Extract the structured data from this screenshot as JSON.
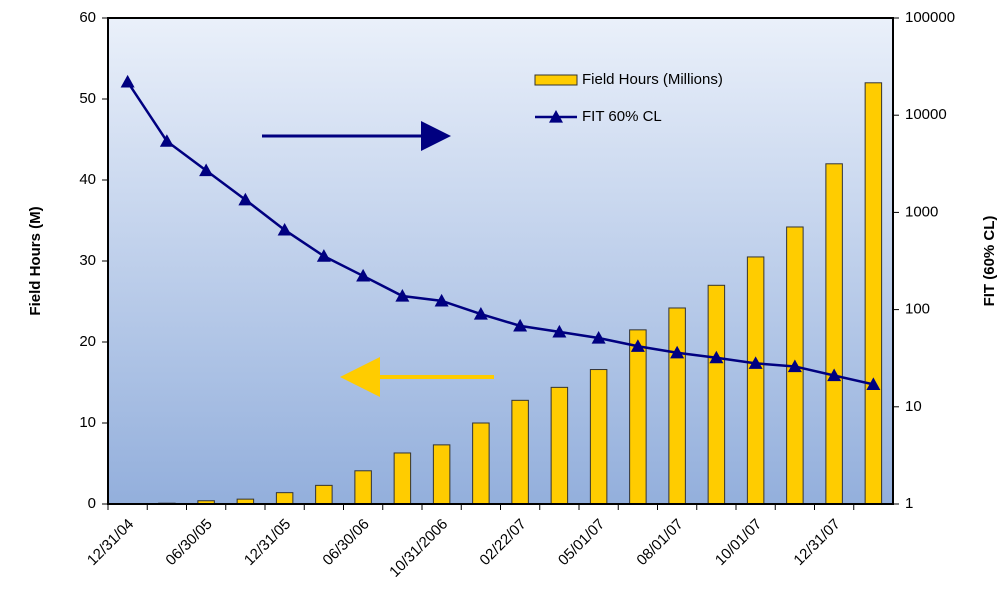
{
  "chart_data": {
    "type": "bar-line",
    "categories": [
      "12/31/04",
      null,
      "06/30/05",
      null,
      "12/31/05",
      null,
      "06/30/06",
      null,
      "10/31/2006",
      null,
      "02/22/07",
      null,
      "05/01/07",
      null,
      "08/01/07",
      null,
      "10/01/07",
      null,
      "12/31/07",
      null
    ],
    "series": [
      {
        "name": "Field Hours (Millions)",
        "type": "bar",
        "color": "#ffcc00",
        "axis": "y",
        "values": [
          0.05,
          0.1,
          0.4,
          0.6,
          1.4,
          2.3,
          4.1,
          6.3,
          7.3,
          10.0,
          12.8,
          14.4,
          16.6,
          21.5,
          24.2,
          27.0,
          30.5,
          34.2,
          42.0,
          52.0
        ]
      },
      {
        "name": "FIT 60% CL",
        "type": "line",
        "color": "#000080",
        "axis": "y2",
        "values": [
          22000,
          5400,
          2700,
          1350,
          660,
          355,
          222,
          138,
          123,
          90,
          68,
          59,
          51,
          42,
          36,
          32,
          28,
          26,
          21,
          17
        ]
      }
    ],
    "ylabel": "Field Hours (M)",
    "y2label": "FIT (60% CL)",
    "ylim": [
      0,
      60
    ],
    "yticks": [
      0,
      10,
      20,
      30,
      40,
      50,
      60
    ],
    "y2lim": [
      1,
      100000
    ],
    "y2ticks": [
      1,
      10,
      100,
      1000,
      10000,
      100000
    ],
    "y2scale": "log",
    "legend": "upper right"
  }
}
